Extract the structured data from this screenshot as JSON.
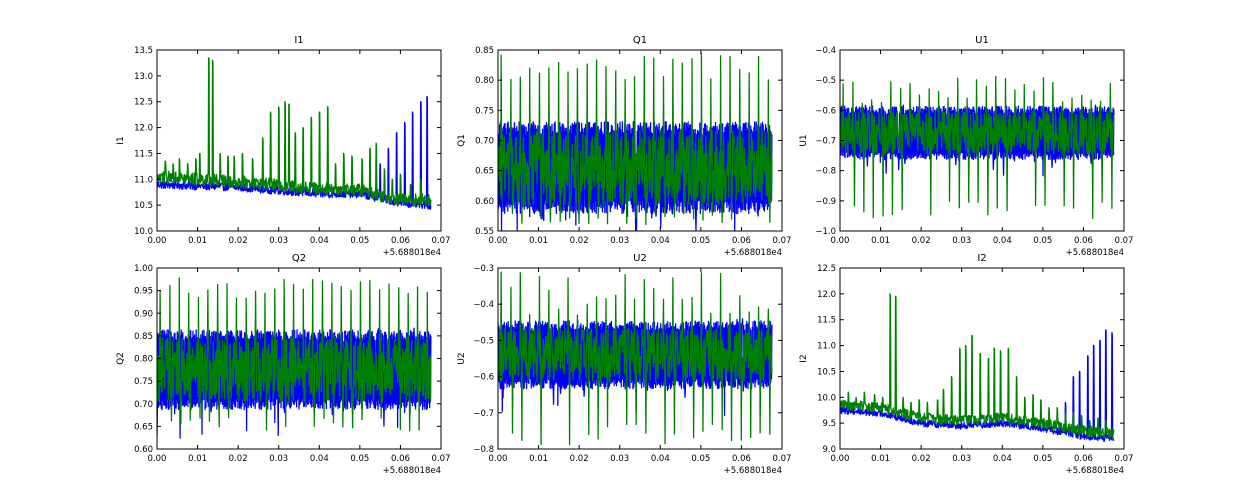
{
  "figure": {
    "background": "#ffffff"
  },
  "chart_data": [
    {
      "type": "line",
      "title": "I1",
      "ylabel": "I1",
      "xlim": [
        0.0,
        0.07
      ],
      "ylim": [
        10.0,
        13.5
      ],
      "xticks": [
        "0.00",
        "0.01",
        "0.02",
        "0.03",
        "0.04",
        "0.05",
        "0.06",
        "0.07"
      ],
      "yticks": [
        "10.0",
        "10.5",
        "11.0",
        "11.5",
        "12.0",
        "12.5",
        "13.0",
        "13.5"
      ],
      "x_offset_label": "+5.688018e4",
      "grid": false,
      "x_end": 0.0675,
      "series": [
        {
          "color": "#0000ff",
          "base": [
            [
              0.0,
              10.9
            ],
            [
              0.02,
              10.85
            ],
            [
              0.04,
              10.72
            ],
            [
              0.05,
              10.72
            ],
            [
              0.06,
              10.55
            ],
            [
              0.0675,
              10.5
            ]
          ],
          "noise": 0.08,
          "spikes": [
            [
              0.055,
              11.3
            ],
            [
              0.057,
              11.6
            ],
            [
              0.059,
              11.9
            ],
            [
              0.061,
              12.1
            ],
            [
              0.063,
              12.3
            ],
            [
              0.065,
              12.5
            ],
            [
              0.0665,
              12.6
            ]
          ]
        },
        {
          "color": "#008000",
          "base": [
            [
              0.0,
              11.05
            ],
            [
              0.02,
              10.95
            ],
            [
              0.04,
              10.82
            ],
            [
              0.05,
              10.8
            ],
            [
              0.06,
              10.6
            ],
            [
              0.0675,
              10.6
            ]
          ],
          "noise": 0.12,
          "spikes": [
            [
              0.002,
              11.35
            ],
            [
              0.004,
              11.3
            ],
            [
              0.0055,
              11.4
            ],
            [
              0.0075,
              11.3
            ],
            [
              0.0095,
              11.4
            ],
            [
              0.0105,
              11.5
            ],
            [
              0.0127,
              13.35
            ],
            [
              0.0137,
              13.3
            ],
            [
              0.0155,
              11.5
            ],
            [
              0.0175,
              11.45
            ],
            [
              0.019,
              11.45
            ],
            [
              0.021,
              11.5
            ],
            [
              0.0235,
              11.4
            ],
            [
              0.026,
              11.8
            ],
            [
              0.028,
              12.3
            ],
            [
              0.03,
              12.4
            ],
            [
              0.0315,
              12.5
            ],
            [
              0.0325,
              12.45
            ],
            [
              0.034,
              11.9
            ],
            [
              0.036,
              12.0
            ],
            [
              0.038,
              12.2
            ],
            [
              0.04,
              12.3
            ],
            [
              0.042,
              12.4
            ],
            [
              0.044,
              11.3
            ],
            [
              0.046,
              11.5
            ],
            [
              0.048,
              11.45
            ],
            [
              0.0505,
              11.4
            ],
            [
              0.0525,
              11.6
            ],
            [
              0.054,
              11.7
            ],
            [
              0.056,
              11.2
            ],
            [
              0.058,
              11.0
            ],
            [
              0.06,
              11.1
            ],
            [
              0.0625,
              10.9
            ],
            [
              0.065,
              11.0
            ]
          ]
        }
      ]
    },
    {
      "type": "line",
      "title": "Q1",
      "ylabel": "Q1",
      "xlim": [
        0.0,
        0.07
      ],
      "ylim": [
        0.55,
        0.85
      ],
      "xticks": [
        "0.00",
        "0.01",
        "0.02",
        "0.03",
        "0.04",
        "0.05",
        "0.06",
        "0.07"
      ],
      "yticks": [
        "0.55",
        "0.60",
        "0.65",
        "0.70",
        "0.75",
        "0.80",
        "0.85"
      ],
      "x_offset_label": "+5.688018e4",
      "grid": false,
      "x_end": 0.0675,
      "band": [
        0.59,
        0.72
      ],
      "spike_top": [
        0.8,
        0.845
      ],
      "spike_bottom": [
        0.56,
        0.58
      ],
      "series": [
        {
          "color": "#0000ff"
        },
        {
          "color": "#008000"
        }
      ]
    },
    {
      "type": "line",
      "title": "U1",
      "ylabel": "U1",
      "xlim": [
        0.0,
        0.07
      ],
      "ylim": [
        -1.0,
        -0.4
      ],
      "xticks": [
        "0.00",
        "0.01",
        "0.02",
        "0.03",
        "0.04",
        "0.05",
        "0.06",
        "0.07"
      ],
      "yticks": [
        "−1.0",
        "−0.9",
        "−0.8",
        "−0.7",
        "−0.6",
        "−0.5",
        "−0.4"
      ],
      "x_offset_label": "+5.688018e4",
      "grid": false,
      "x_end": 0.0675,
      "band": [
        -0.75,
        -0.6
      ],
      "spike_top": [
        -0.58,
        -0.47
      ],
      "spike_bottom": [
        -0.96,
        -0.9
      ],
      "series": [
        {
          "color": "#0000ff"
        },
        {
          "color": "#008000"
        }
      ]
    },
    {
      "type": "line",
      "title": "Q2",
      "ylabel": "Q2",
      "xlim": [
        0.0,
        0.07
      ],
      "ylim": [
        0.6,
        1.0
      ],
      "xticks": [
        "0.00",
        "0.01",
        "0.02",
        "0.03",
        "0.04",
        "0.05",
        "0.06",
        "0.07"
      ],
      "yticks": [
        "0.60",
        "0.65",
        "0.70",
        "0.75",
        "0.80",
        "0.85",
        "0.90",
        "0.95",
        "1.00"
      ],
      "x_offset_label": "+5.688018e4",
      "grid": false,
      "x_end": 0.0675,
      "band": [
        0.7,
        0.85
      ],
      "spike_top": [
        0.93,
        0.98
      ],
      "spike_bottom": [
        0.64,
        0.67
      ],
      "series": [
        {
          "color": "#0000ff"
        },
        {
          "color": "#008000"
        }
      ]
    },
    {
      "type": "line",
      "title": "U2",
      "ylabel": "U2",
      "xlim": [
        0.0,
        0.07
      ],
      "ylim": [
        -0.8,
        -0.3
      ],
      "xticks": [
        "0.00",
        "0.01",
        "0.02",
        "0.03",
        "0.04",
        "0.05",
        "0.06",
        "0.07"
      ],
      "yticks": [
        "−0.8",
        "−0.7",
        "−0.6",
        "−0.5",
        "−0.4",
        "−0.3"
      ],
      "x_offset_label": "+5.688018e4",
      "grid": false,
      "x_end": 0.0675,
      "band": [
        -0.62,
        -0.46
      ],
      "spike_top": [
        -0.44,
        -0.31
      ],
      "spike_bottom": [
        -0.79,
        -0.73
      ],
      "series": [
        {
          "color": "#0000ff"
        },
        {
          "color": "#008000"
        }
      ]
    },
    {
      "type": "line",
      "title": "I2",
      "ylabel": "I2",
      "xlim": [
        0.0,
        0.07
      ],
      "ylim": [
        9.0,
        12.5
      ],
      "xticks": [
        "0.00",
        "0.01",
        "0.02",
        "0.03",
        "0.04",
        "0.05",
        "0.06",
        "0.07"
      ],
      "yticks": [
        "9.0",
        "9.5",
        "10.0",
        "10.5",
        "11.0",
        "11.5",
        "12.0",
        "12.5"
      ],
      "x_offset_label": "+5.688018e4",
      "grid": false,
      "x_end": 0.0675,
      "series": [
        {
          "color": "#0000ff",
          "base": [
            [
              0.0,
              9.75
            ],
            [
              0.01,
              9.7
            ],
            [
              0.02,
              9.5
            ],
            [
              0.03,
              9.45
            ],
            [
              0.04,
              9.5
            ],
            [
              0.05,
              9.4
            ],
            [
              0.06,
              9.25
            ],
            [
              0.0675,
              9.2
            ]
          ],
          "noise": 0.07,
          "spikes": [
            [
              0.0555,
              9.9
            ],
            [
              0.0575,
              10.4
            ],
            [
              0.059,
              10.5
            ],
            [
              0.061,
              10.8
            ],
            [
              0.0625,
              11.0
            ],
            [
              0.064,
              11.1
            ],
            [
              0.0655,
              11.3
            ],
            [
              0.067,
              11.25
            ]
          ]
        },
        {
          "color": "#008000",
          "base": [
            [
              0.0,
              9.85
            ],
            [
              0.01,
              9.8
            ],
            [
              0.02,
              9.6
            ],
            [
              0.03,
              9.55
            ],
            [
              0.04,
              9.6
            ],
            [
              0.05,
              9.5
            ],
            [
              0.06,
              9.35
            ],
            [
              0.0675,
              9.3
            ]
          ],
          "noise": 0.1,
          "spikes": [
            [
              0.002,
              10.1
            ],
            [
              0.004,
              10.0
            ],
            [
              0.006,
              10.1
            ],
            [
              0.0085,
              10.05
            ],
            [
              0.0105,
              10.0
            ],
            [
              0.0123,
              12.0
            ],
            [
              0.0137,
              11.95
            ],
            [
              0.0155,
              10.0
            ],
            [
              0.0175,
              9.9
            ],
            [
              0.0195,
              9.95
            ],
            [
              0.0215,
              9.9
            ],
            [
              0.024,
              9.95
            ],
            [
              0.0255,
              10.15
            ],
            [
              0.0275,
              10.4
            ],
            [
              0.0295,
              10.95
            ],
            [
              0.031,
              11.0
            ],
            [
              0.0325,
              11.2
            ],
            [
              0.0345,
              10.85
            ],
            [
              0.0365,
              10.75
            ],
            [
              0.038,
              10.95
            ],
            [
              0.0395,
              10.9
            ],
            [
              0.0415,
              10.95
            ],
            [
              0.0435,
              10.4
            ],
            [
              0.0455,
              10.0
            ],
            [
              0.0475,
              10.05
            ],
            [
              0.0495,
              9.95
            ],
            [
              0.0515,
              9.8
            ],
            [
              0.0535,
              9.8
            ],
            [
              0.0555,
              9.7
            ],
            [
              0.0575,
              9.7
            ],
            [
              0.0595,
              9.65
            ],
            [
              0.0615,
              9.55
            ],
            [
              0.0635,
              9.6
            ],
            [
              0.0655,
              9.55
            ]
          ]
        }
      ]
    }
  ]
}
